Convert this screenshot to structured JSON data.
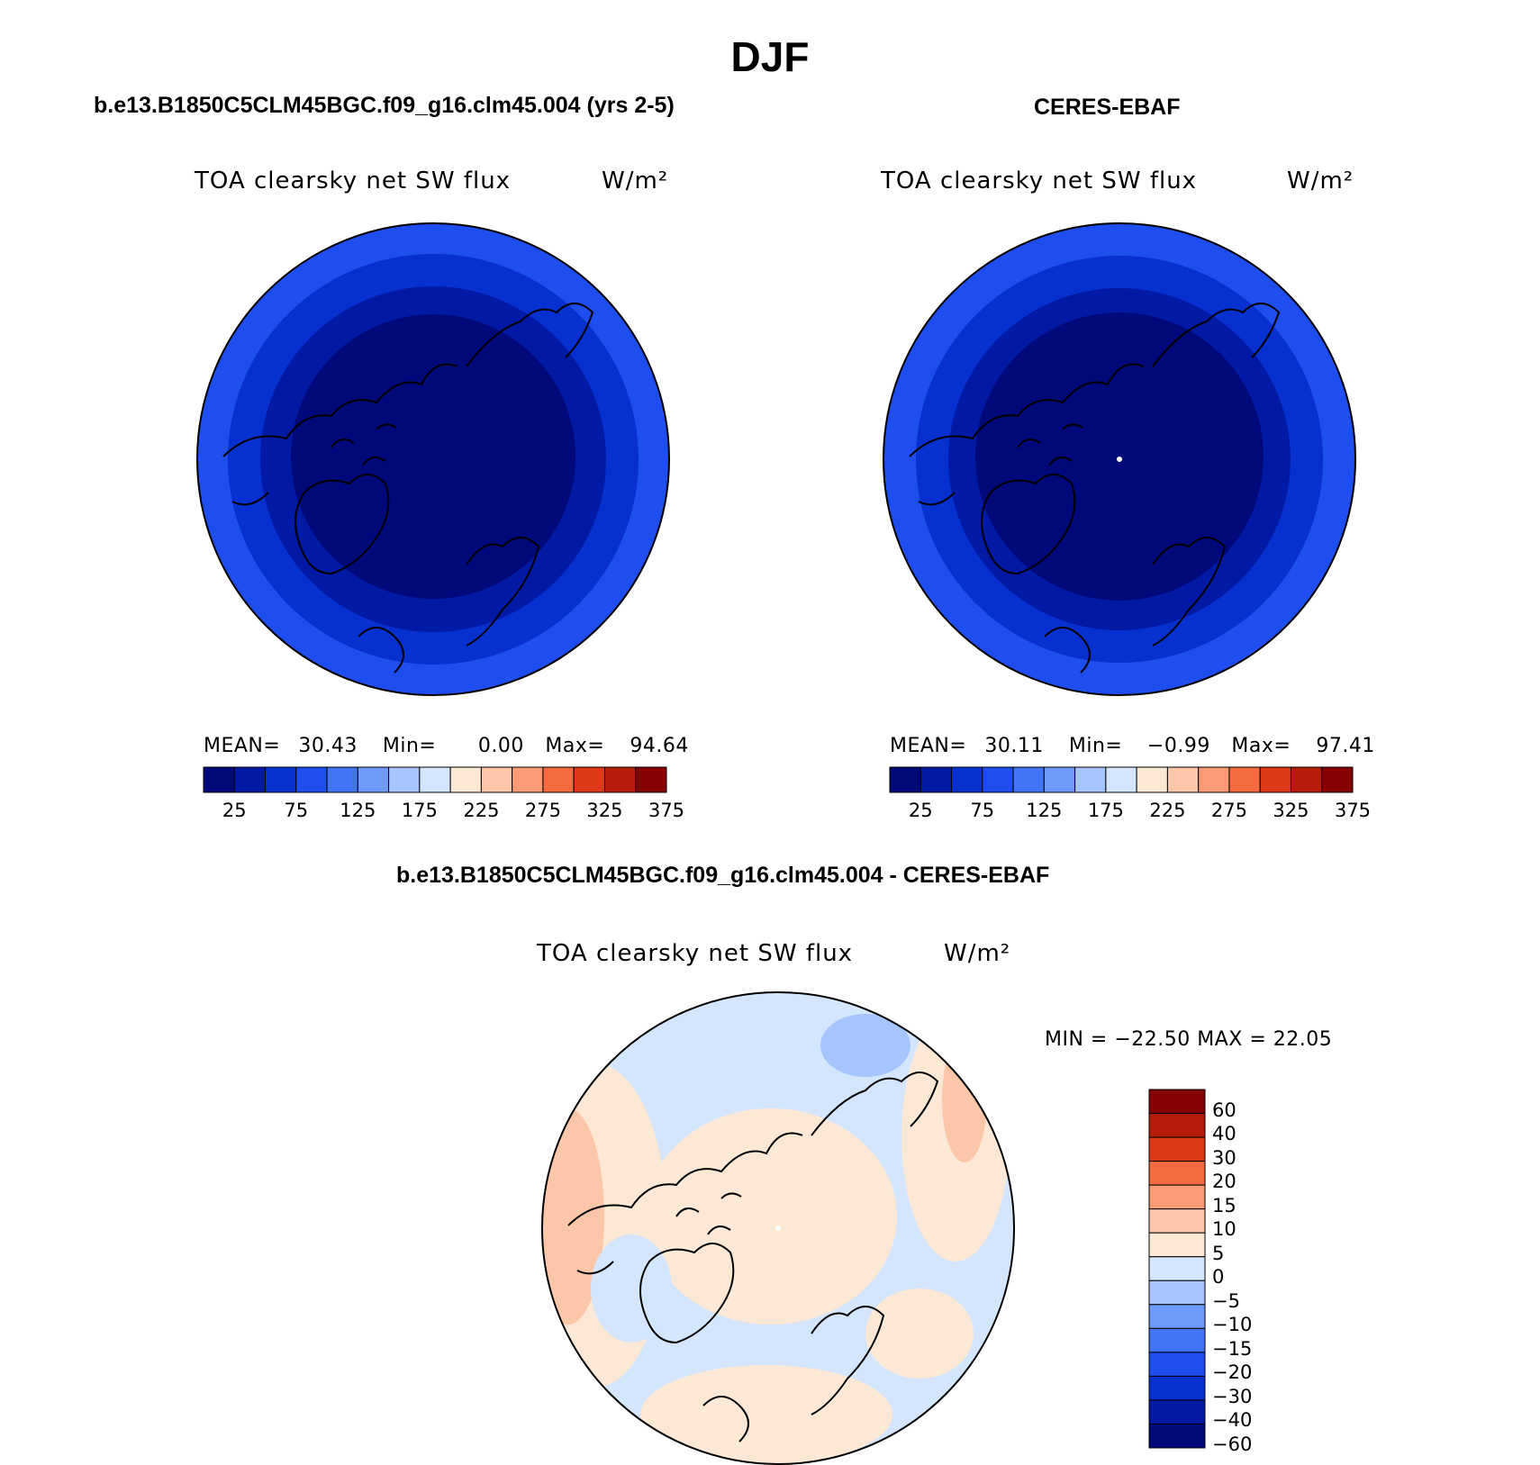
{
  "figure_title": "DJF",
  "panels": {
    "model": {
      "subtitle": "b.e13.B1850C5CLM45BGC.f09_g16.clm45.004 (yrs 2-5)",
      "variable": "TOA clearsky net SW flux",
      "units": "W/m²",
      "stats": {
        "mean_label": "MEAN=",
        "mean": "30.43",
        "min_label": "Min=",
        "min": "0.00",
        "max_label": "Max=",
        "max": "94.64"
      }
    },
    "obs": {
      "subtitle": "CERES-EBAF",
      "variable": "TOA clearsky net SW flux",
      "units": "W/m²",
      "stats": {
        "mean_label": "MEAN=",
        "mean": "30.11",
        "min_label": "Min=",
        "min": "−0.99",
        "max_label": "Max=",
        "max": "97.41"
      }
    },
    "diff": {
      "subtitle": "b.e13.B1850C5CLM45BGC.f09_g16.clm45.004 - CERES-EBAF",
      "variable": "TOA clearsky net SW flux",
      "units": "W/m²",
      "minmax": "MIN = −22.50 MAX =  22.05"
    }
  },
  "colorbar_abs": {
    "colors": [
      "#00097a",
      "#001aa6",
      "#0630cf",
      "#1e4df0",
      "#4174f7",
      "#6e9bfb",
      "#a6c4fd",
      "#d3e6fe",
      "#fde8d6",
      "#fcc6a8",
      "#f99c75",
      "#f56b3f",
      "#e0391a",
      "#b71c0a",
      "#850000"
    ],
    "tick_labels": [
      "25",
      "75",
      "125",
      "175",
      "225",
      "275",
      "325",
      "375"
    ]
  },
  "colorbar_diff": {
    "colors": [
      "#00097a",
      "#001aa6",
      "#0630cf",
      "#1e4df0",
      "#4174f7",
      "#6e9bfb",
      "#a6c4fd",
      "#d3e6fe",
      "#fde8d6",
      "#fcc6a8",
      "#f99c75",
      "#f56b3f",
      "#e0391a",
      "#b71c0a",
      "#850000"
    ],
    "tick_labels": [
      "60",
      "40",
      "30",
      "20",
      "15",
      "10",
      "5",
      "0",
      "−5",
      "−10",
      "−15",
      "−20",
      "−30",
      "−40",
      "−60"
    ]
  }
}
